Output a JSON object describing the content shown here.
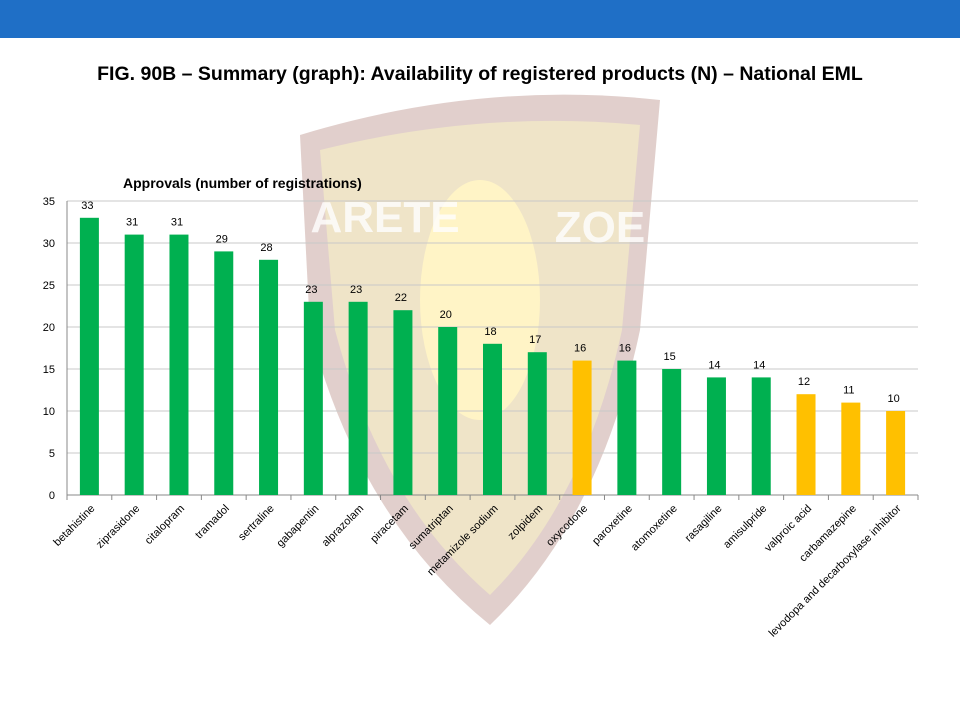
{
  "slide": {
    "title": "FIG. 90B – Summary (graph): Availability of registered products (N) – National EML"
  },
  "watermark": {
    "left": "ARETE",
    "right": "ZOE"
  },
  "chart_data": {
    "type": "bar",
    "title": "Approvals (number of registrations)",
    "categories": [
      "betahistine",
      "ziprasidone",
      "citalopram",
      "tramadol",
      "sertraline",
      "gabapentin",
      "alprazolam",
      "piracetam",
      "sumatriptan",
      "metamizole sodium",
      "zolpidem",
      "oxycodone",
      "paroxetine",
      "atomoxetine",
      "rasagiline",
      "amisulpride",
      "valproic acid",
      "carbamazepine",
      "levodopa and decarboxylase inhibitor"
    ],
    "values": [
      33,
      31,
      31,
      29,
      28,
      23,
      23,
      22,
      20,
      18,
      17,
      16,
      16,
      15,
      14,
      14,
      12,
      11,
      10
    ],
    "colors": [
      "#00b050",
      "#00b050",
      "#00b050",
      "#00b050",
      "#00b050",
      "#00b050",
      "#00b050",
      "#00b050",
      "#00b050",
      "#00b050",
      "#00b050",
      "#ffc000",
      "#00b050",
      "#00b050",
      "#00b050",
      "#00b050",
      "#ffc000",
      "#ffc000",
      "#ffc000"
    ],
    "ylim": [
      0,
      35
    ],
    "yticks": [
      0,
      5,
      10,
      15,
      20,
      25,
      30,
      35
    ],
    "grid": true
  }
}
